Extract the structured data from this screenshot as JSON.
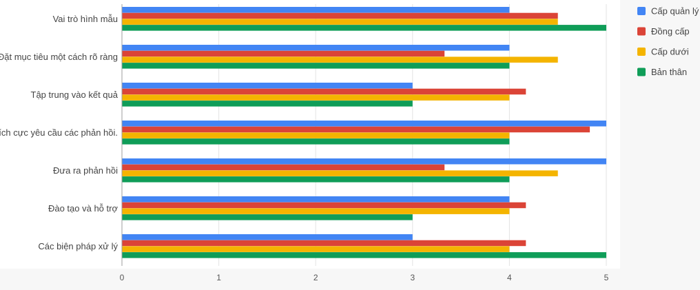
{
  "chart_data": {
    "type": "bar",
    "orientation": "horizontal",
    "categories": [
      "Vai trò hình mẫu",
      "Đặt mục tiêu một cách rõ ràng",
      "Tập trung vào kết quả",
      "Tích cực yêu cầu các phản hồi.",
      "Đưa ra phản hồi",
      "Đào tạo và hỗ trợ",
      "Các biện pháp xử lý"
    ],
    "series": [
      {
        "name": "Cấp quản lý",
        "color": "#4285f4",
        "values": [
          4,
          4,
          3,
          5,
          5,
          4,
          3
        ]
      },
      {
        "name": "Đồng cấp",
        "color": "#db4437",
        "values": [
          4.5,
          3.33,
          4.17,
          4.83,
          3.33,
          4.17,
          4.17
        ]
      },
      {
        "name": "Cấp dưới",
        "color": "#f4b400",
        "values": [
          4.5,
          4.5,
          4,
          4,
          4.5,
          4,
          4
        ]
      },
      {
        "name": "Bản thân",
        "color": "#0f9d58",
        "values": [
          5,
          4,
          3,
          4,
          4,
          3,
          5
        ]
      }
    ],
    "xlim": [
      0,
      5
    ],
    "x_ticks": [
      "0",
      "1",
      "2",
      "3",
      "4",
      "5"
    ],
    "grid": true,
    "legend_position": "right"
  }
}
